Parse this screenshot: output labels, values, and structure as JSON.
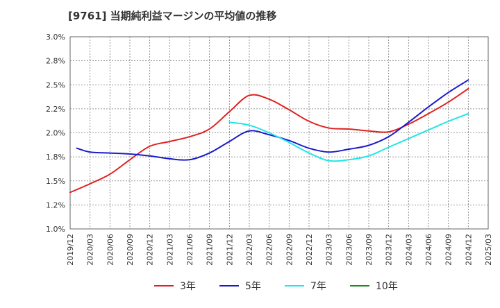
{
  "chart_data": {
    "type": "line",
    "title": "[9761]  当期純利益マージンの平均値の推移",
    "xlabel": "",
    "ylabel": "",
    "ylim": [
      1.0,
      3.0
    ],
    "yticks": [
      1.0,
      1.25,
      1.5,
      1.75,
      2.0,
      2.25,
      2.5,
      2.75,
      3.0
    ],
    "ytick_labels": [
      "1.0%",
      "1.2%",
      "1.5%",
      "1.8%",
      "2.0%",
      "2.2%",
      "2.5%",
      "2.8%",
      "3.0%"
    ],
    "x_categories": [
      "2019/12",
      "2020/03",
      "2020/06",
      "2020/09",
      "2020/12",
      "2021/03",
      "2021/06",
      "2021/09",
      "2021/12",
      "2022/03",
      "2022/06",
      "2022/09",
      "2022/12",
      "2023/03",
      "2023/06",
      "2023/09",
      "2023/12",
      "2024/03",
      "2024/06",
      "2024/09",
      "2024/12",
      "2025/03"
    ],
    "grid": true,
    "legend_position": "bottom",
    "series": [
      {
        "name": "3年",
        "color": "#e02020",
        "x": [
          "2019/12",
          "2020/03",
          "2020/06",
          "2020/09",
          "2020/12",
          "2021/03",
          "2021/06",
          "2021/09",
          "2021/12",
          "2022/03",
          "2022/06",
          "2022/09",
          "2022/12",
          "2023/03",
          "2023/06",
          "2023/09",
          "2023/12",
          "2024/03",
          "2024/06",
          "2024/09",
          "2024/12"
        ],
        "values": [
          1.38,
          1.47,
          1.57,
          1.72,
          1.86,
          1.91,
          1.96,
          2.04,
          2.22,
          2.39,
          2.35,
          2.24,
          2.12,
          2.05,
          2.04,
          2.02,
          2.01,
          2.09,
          2.2,
          2.32,
          2.46
        ]
      },
      {
        "name": "5年",
        "color": "#1a1acc",
        "x": [
          "2020/01",
          "2020/03",
          "2020/06",
          "2020/09",
          "2020/12",
          "2021/03",
          "2021/06",
          "2021/09",
          "2021/12",
          "2022/03",
          "2022/06",
          "2022/09",
          "2022/12",
          "2023/03",
          "2023/06",
          "2023/09",
          "2023/12",
          "2024/03",
          "2024/06",
          "2024/09",
          "2024/12"
        ],
        "values": [
          1.84,
          1.8,
          1.79,
          1.78,
          1.76,
          1.73,
          1.72,
          1.79,
          1.91,
          2.02,
          1.98,
          1.92,
          1.84,
          1.8,
          1.83,
          1.87,
          1.96,
          2.11,
          2.27,
          2.42,
          2.55
        ]
      },
      {
        "name": "7年",
        "color": "#22e5e5",
        "x": [
          "2021/12",
          "2022/03",
          "2022/06",
          "2022/09",
          "2022/12",
          "2023/03",
          "2023/06",
          "2023/09",
          "2023/12",
          "2024/03",
          "2024/06",
          "2024/09",
          "2024/12"
        ],
        "values": [
          2.11,
          2.08,
          2.0,
          1.9,
          1.79,
          1.71,
          1.72,
          1.76,
          1.85,
          1.94,
          2.03,
          2.12,
          2.2
        ]
      },
      {
        "name": "10年",
        "color": "#1a8a1a",
        "x": [],
        "values": []
      }
    ]
  }
}
